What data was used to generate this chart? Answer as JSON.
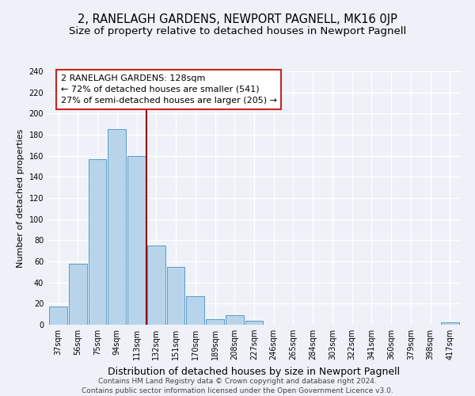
{
  "title": "2, RANELAGH GARDENS, NEWPORT PAGNELL, MK16 0JP",
  "subtitle": "Size of property relative to detached houses in Newport Pagnell",
  "xlabel": "Distribution of detached houses by size in Newport Pagnell",
  "ylabel": "Number of detached properties",
  "bar_labels": [
    "37sqm",
    "56sqm",
    "75sqm",
    "94sqm",
    "113sqm",
    "132sqm",
    "151sqm",
    "170sqm",
    "189sqm",
    "208sqm",
    "227sqm",
    "246sqm",
    "265sqm",
    "284sqm",
    "303sqm",
    "322sqm",
    "341sqm",
    "360sqm",
    "379sqm",
    "398sqm",
    "417sqm"
  ],
  "bar_values": [
    17,
    58,
    157,
    185,
    160,
    75,
    55,
    27,
    5,
    9,
    4,
    0,
    0,
    0,
    0,
    0,
    0,
    0,
    0,
    0,
    2
  ],
  "bar_color": "#b8d4ea",
  "bar_edge_color": "#5a9ac8",
  "vline_x_idx": 4.5,
  "vline_color": "#8b0000",
  "annotation_line1": "2 RANELAGH GARDENS: 128sqm",
  "annotation_line2": "← 72% of detached houses are smaller (541)",
  "annotation_line3": "27% of semi-detached houses are larger (205) →",
  "ylim": [
    0,
    240
  ],
  "yticks": [
    0,
    20,
    40,
    60,
    80,
    100,
    120,
    140,
    160,
    180,
    200,
    220,
    240
  ],
  "background_color": "#eef2f8",
  "footer_text": "Contains HM Land Registry data © Crown copyright and database right 2024.\nContains public sector information licensed under the Open Government Licence v3.0.",
  "title_fontsize": 10.5,
  "subtitle_fontsize": 9.5,
  "ylabel_fontsize": 8,
  "xlabel_fontsize": 9,
  "tick_fontsize": 7,
  "annotation_fontsize": 8,
  "footer_fontsize": 6.5
}
